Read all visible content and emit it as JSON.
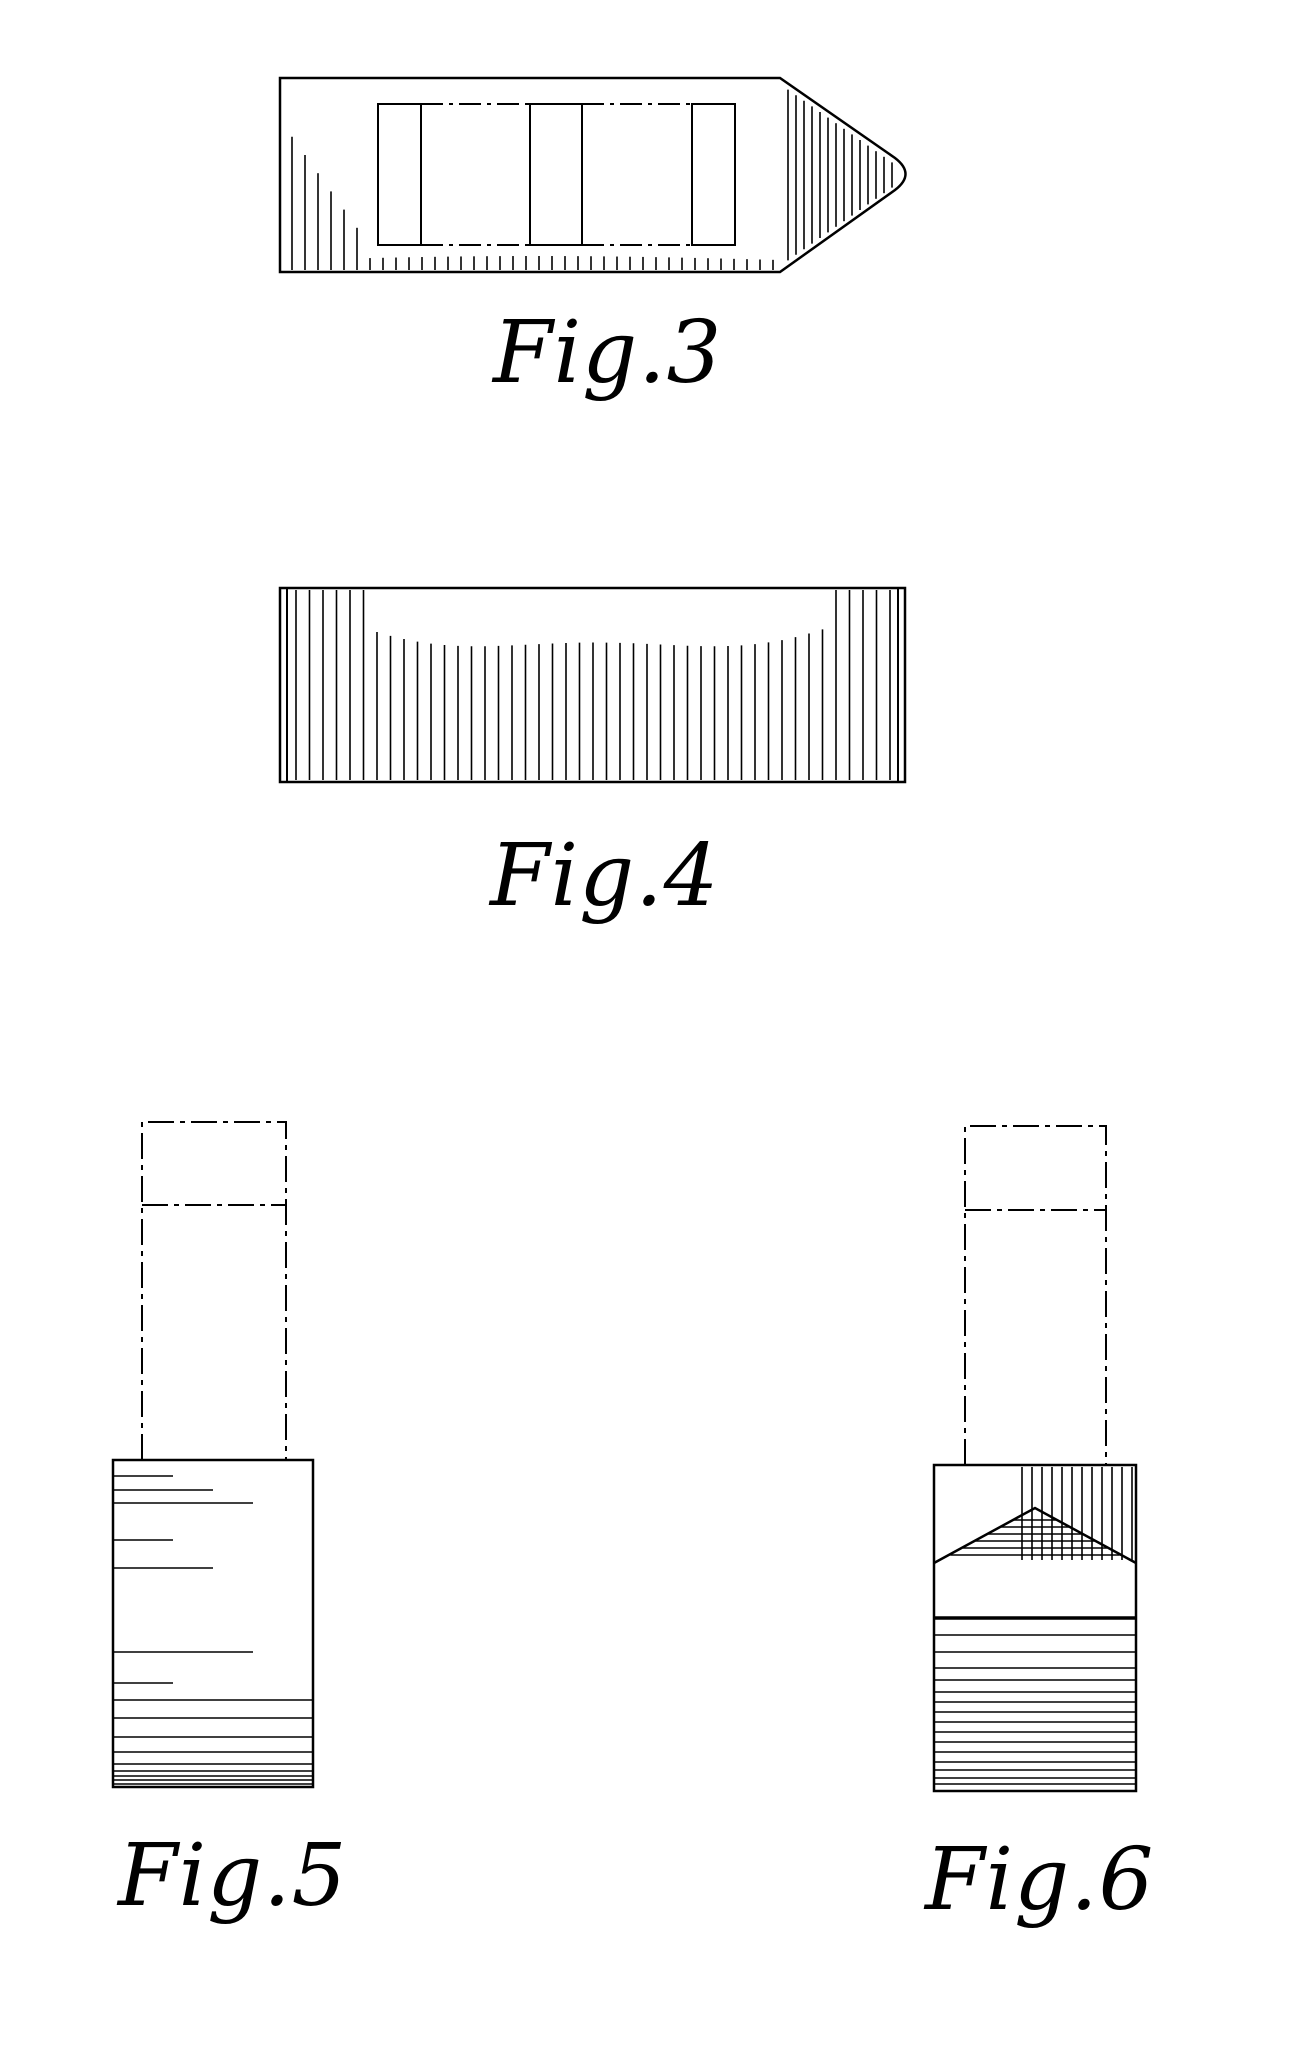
{
  "sheet": {
    "ink_color": "#000000",
    "paper_color": "#ffffff",
    "figures": [
      {
        "id": "fig3",
        "caption": "Fig.3"
      },
      {
        "id": "fig4",
        "caption": "Fig.4"
      },
      {
        "id": "fig5",
        "caption": "Fig.5"
      },
      {
        "id": "fig6",
        "caption": "Fig.6"
      }
    ]
  }
}
